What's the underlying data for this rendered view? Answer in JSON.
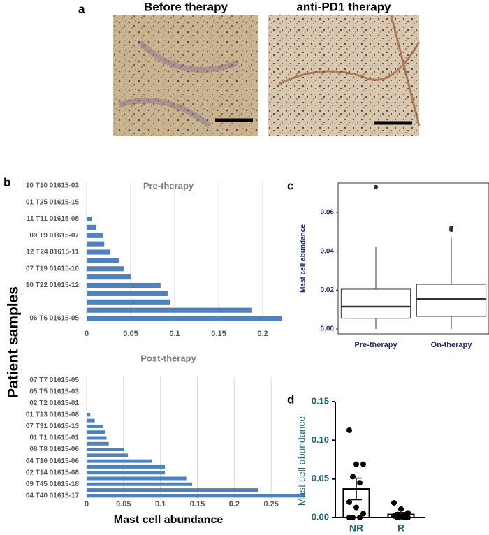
{
  "panel_a": {
    "label": "a",
    "images": [
      {
        "title": "Before therapy"
      },
      {
        "title": "anti-PD1 therapy"
      }
    ]
  },
  "chart_data": [
    {
      "type": "bar",
      "orientation": "horizontal",
      "panel": "b",
      "title": "Pre-therapy",
      "ylabel": "Patient samples",
      "categories": [
        "06 T6 01615-05",
        null,
        null,
        null,
        "10 T22 01615-12",
        null,
        "07 T19 01615-10",
        null,
        "12 T24 01615-11",
        null,
        "09 T9 01615-07",
        null,
        "11 T11 01615-08",
        null,
        "01 T25 01615-15",
        null,
        "10 T10 01615-03"
      ],
      "values": [
        0.222,
        0.188,
        0.095,
        0.092,
        0.084,
        0.05,
        0.042,
        0.037,
        0.027,
        0.02,
        0.019,
        0.011,
        0.006,
        0,
        0,
        0,
        0
      ],
      "color": "#4f81bd",
      "xlim": [
        0,
        0.25
      ],
      "xticks": [
        0,
        0.05,
        0.1,
        0.15,
        0.2
      ],
      "grid": true
    },
    {
      "type": "bar",
      "orientation": "horizontal",
      "title": "Post-therapy",
      "xlabel": "Mast cell abundance",
      "categories": [
        "04 T40 01615-17",
        null,
        "09 T45 01615-18",
        null,
        "02 T14 01615-08",
        null,
        "04 T16 01615-06",
        null,
        "08 T8 01615-06",
        null,
        "01 T1 01615-01",
        null,
        "07 T31 01615-13",
        null,
        "01 T13 01615-08",
        null,
        "02 T2 01615-01",
        null,
        "05 T5 01615-03",
        null,
        "07 T7 01615-05"
      ],
      "values": [
        0.296,
        0.232,
        0.143,
        0.135,
        0.106,
        0.106,
        0.088,
        0.056,
        0.051,
        0.03,
        0.027,
        0.025,
        0.022,
        0.011,
        0.005,
        0,
        0,
        0,
        0,
        0,
        0
      ],
      "color": "#4f81bd",
      "xlim": [
        0,
        0.3
      ],
      "xticks": [
        0,
        0.05,
        0.1,
        0.15,
        0.2,
        0.25
      ],
      "grid": true
    },
    {
      "type": "box",
      "panel": "c",
      "ylabel": "Mast cell abundance",
      "categories": [
        "Pre-therapy",
        "On-therapy"
      ],
      "boxes": [
        {
          "min": 0.0,
          "q1": 0.0055,
          "median": 0.0115,
          "q3": 0.0205,
          "max": 0.042,
          "outliers": [
            0.073
          ]
        },
        {
          "min": 0.0,
          "q1": 0.0065,
          "median": 0.0155,
          "q3": 0.023,
          "max": 0.047,
          "outliers": [
            0.051,
            0.052
          ]
        }
      ],
      "ylim": [
        -0.0025,
        0.0751
      ],
      "yticks": [
        {
          "value": 0,
          "label": "0.00"
        },
        {
          "value": 0.02,
          "label": "0.02"
        },
        {
          "value": 0.04,
          "label": "0.04"
        },
        {
          "value": 0.06,
          "label": "0.06"
        }
      ]
    },
    {
      "type": "bar",
      "orientation": "vertical",
      "panel": "d",
      "ylabel": "Mast cell abundance",
      "categories": [
        "NR",
        "R"
      ],
      "values": [
        0.037,
        0.004
      ],
      "errors": [
        0.014,
        0.0025
      ],
      "points": [
        [
          0.113,
          0.069,
          0.069,
          0.053,
          0.045,
          0.02,
          0.013,
          0.005,
          0,
          0,
          0
        ],
        [
          0.019,
          0.011,
          0.006,
          0.004,
          0.003,
          0.002,
          0.001,
          0,
          0,
          0
        ]
      ],
      "ylim": [
        0,
        0.15
      ],
      "yticks": [
        {
          "value": 0,
          "label": "0.00"
        },
        {
          "value": 0.05,
          "label": "0.05"
        },
        {
          "value": 0.1,
          "label": "0.10"
        },
        {
          "value": 0.15,
          "label": "0.15"
        }
      ]
    }
  ]
}
